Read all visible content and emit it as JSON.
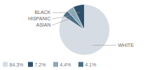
{
  "chart_data": {
    "type": "pie",
    "categories": [
      "WHITE",
      "ASIAN",
      "HISPANIC",
      "BLACK"
    ],
    "values": [
      84.3,
      4.1,
      4.4,
      7.2
    ],
    "value_labels": [
      "84.3%",
      "4.1%",
      "4.4%",
      "7.2%"
    ],
    "colors": [
      "#d6dce4",
      "#4a6e85",
      "#8aaab8",
      "#2e4f6b"
    ],
    "legend": "lower left"
  }
}
